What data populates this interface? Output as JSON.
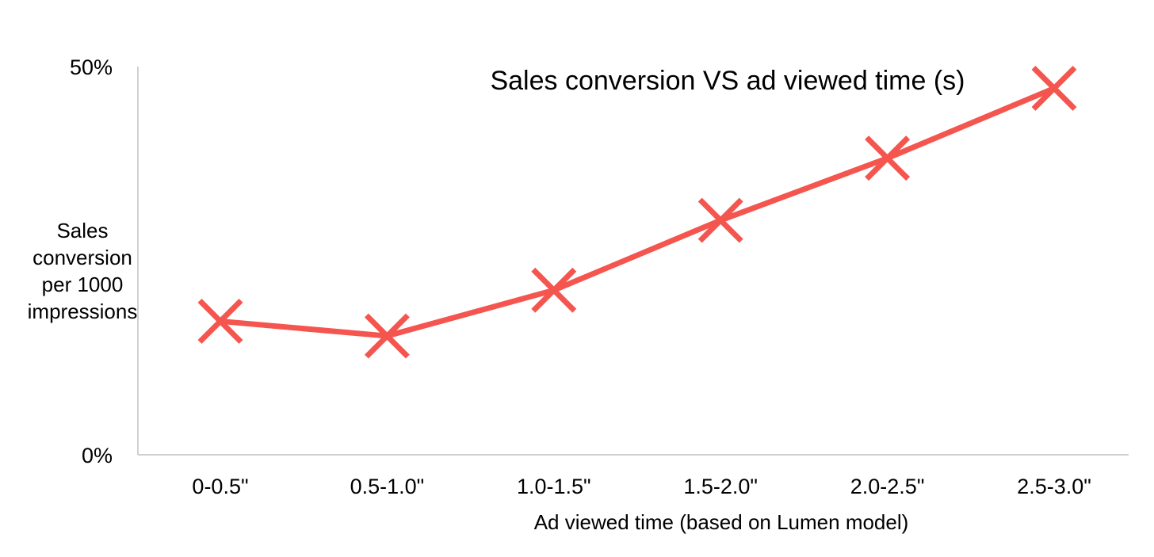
{
  "chart_data": {
    "type": "line",
    "title": "Sales conversion VS ad viewed time (s)",
    "xlabel": "Ad viewed time (based on Lumen model)",
    "ylabel": "Sales conversion per 1000 impressions",
    "ylabel_lines": [
      "Sales",
      "conversion",
      "per 1000",
      "impressions"
    ],
    "categories": [
      "0-0.5\"",
      "0.5-1.0\"",
      "1.0-1.5\"",
      "1.5-2.0\"",
      "2.0-2.5\"",
      "2.5-3.0\""
    ],
    "series": [
      {
        "values": [
          17.2,
          15.3,
          21.2,
          30.2,
          38.2,
          47.2
        ],
        "color": "#F4564F",
        "marker": "x"
      }
    ],
    "ylim": [
      0,
      50
    ],
    "yticks": [
      {
        "value": 0,
        "label": "0%"
      },
      {
        "value": 50,
        "label": "50%"
      }
    ],
    "grid": false,
    "legend": "none",
    "axis_color": "#D0D0D0"
  }
}
